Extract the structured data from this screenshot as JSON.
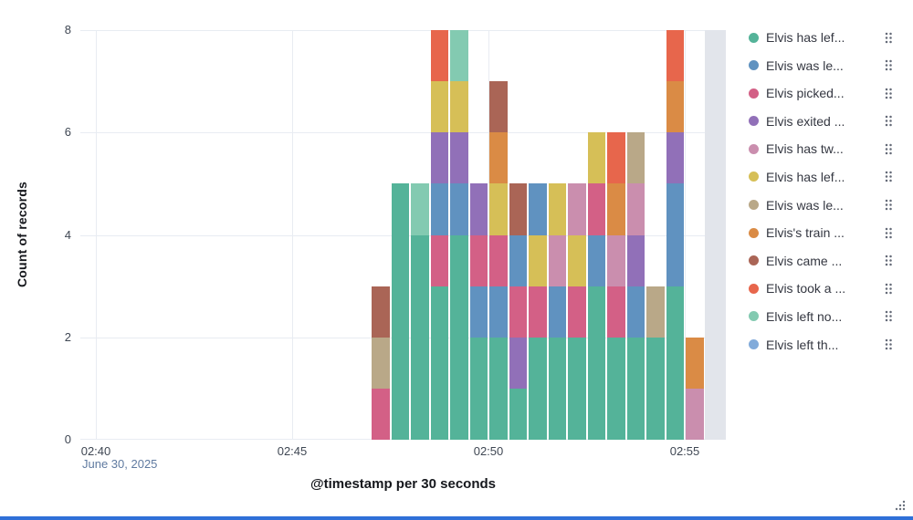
{
  "chart_data": {
    "type": "bar",
    "stacked": true,
    "title": "",
    "xlabel": "@timestamp per 30 seconds",
    "ylabel": "Count of records",
    "x_context_label": "June 30, 2025",
    "ylim": [
      0,
      8
    ],
    "yticks": [
      0,
      2,
      4,
      6,
      8
    ],
    "grid": true,
    "legend_position": "right",
    "bucket_seconds": 30,
    "xticks": [
      {
        "label": "02:40",
        "minute": 0
      },
      {
        "label": "02:45",
        "minute": 5
      },
      {
        "label": "02:50",
        "minute": 10
      },
      {
        "label": "02:55",
        "minute": 15
      }
    ],
    "series": [
      {
        "name": "Elvis has lef...",
        "color": "#54B399"
      },
      {
        "name": "Elvis was le...",
        "color": "#6092C0"
      },
      {
        "name": "Elvis picked...",
        "color": "#D36086"
      },
      {
        "name": "Elvis exited ...",
        "color": "#9170B8"
      },
      {
        "name": "Elvis has tw...",
        "color": "#CA8EAE"
      },
      {
        "name": "Elvis has lef...",
        "color": "#D6BF57"
      },
      {
        "name": "Elvis was le...",
        "color": "#B9A888"
      },
      {
        "name": "Elvis's train ...",
        "color": "#DA8B45"
      },
      {
        "name": "Elvis came ...",
        "color": "#AA6556"
      },
      {
        "name": "Elvis took a ...",
        "color": "#E7664C"
      },
      {
        "name": "Elvis left no...",
        "color": "#83CAB1"
      },
      {
        "name": "Elvis left th...",
        "color": "#82ABDA"
      }
    ],
    "buckets": [
      {
        "time": "02:47:00",
        "i": 14,
        "total": 3,
        "stack": [
          [
            2,
            1
          ],
          [
            6,
            1
          ],
          [
            8,
            1
          ]
        ]
      },
      {
        "time": "02:47:30",
        "i": 15,
        "total": 5,
        "stack": [
          [
            0,
            5
          ]
        ]
      },
      {
        "time": "02:48:00",
        "i": 16,
        "total": 5,
        "stack": [
          [
            0,
            4
          ],
          [
            10,
            1
          ]
        ]
      },
      {
        "time": "02:48:30",
        "i": 17,
        "total": 8,
        "stack": [
          [
            0,
            3
          ],
          [
            2,
            1
          ],
          [
            1,
            1
          ],
          [
            3,
            1
          ],
          [
            5,
            1
          ],
          [
            9,
            1
          ]
        ]
      },
      {
        "time": "02:49:00",
        "i": 18,
        "total": 8,
        "stack": [
          [
            0,
            4
          ],
          [
            1,
            1
          ],
          [
            3,
            1
          ],
          [
            5,
            1
          ],
          [
            10,
            1
          ]
        ]
      },
      {
        "time": "02:49:30",
        "i": 19,
        "total": 5,
        "stack": [
          [
            0,
            2
          ],
          [
            1,
            1
          ],
          [
            2,
            1
          ],
          [
            3,
            1
          ]
        ]
      },
      {
        "time": "02:50:00",
        "i": 20,
        "total": 7,
        "stack": [
          [
            0,
            2
          ],
          [
            1,
            1
          ],
          [
            2,
            1
          ],
          [
            5,
            1
          ],
          [
            7,
            1
          ],
          [
            8,
            1
          ]
        ]
      },
      {
        "time": "02:50:30",
        "i": 21,
        "total": 5,
        "stack": [
          [
            0,
            1
          ],
          [
            3,
            1
          ],
          [
            2,
            1
          ],
          [
            1,
            1
          ],
          [
            8,
            1
          ]
        ]
      },
      {
        "time": "02:51:00",
        "i": 22,
        "total": 5,
        "stack": [
          [
            0,
            2
          ],
          [
            2,
            1
          ],
          [
            5,
            1
          ],
          [
            1,
            1
          ]
        ]
      },
      {
        "time": "02:51:30",
        "i": 23,
        "total": 5,
        "stack": [
          [
            0,
            2
          ],
          [
            1,
            1
          ],
          [
            4,
            1
          ],
          [
            5,
            1
          ]
        ]
      },
      {
        "time": "02:52:00",
        "i": 24,
        "total": 5,
        "stack": [
          [
            0,
            2
          ],
          [
            2,
            1
          ],
          [
            5,
            1
          ],
          [
            4,
            1
          ]
        ]
      },
      {
        "time": "02:52:30",
        "i": 25,
        "total": 6,
        "stack": [
          [
            0,
            3
          ],
          [
            1,
            1
          ],
          [
            2,
            1
          ],
          [
            5,
            1
          ]
        ]
      },
      {
        "time": "02:53:00",
        "i": 26,
        "total": 6,
        "stack": [
          [
            0,
            2
          ],
          [
            2,
            1
          ],
          [
            4,
            1
          ],
          [
            7,
            1
          ],
          [
            9,
            1
          ]
        ]
      },
      {
        "time": "02:53:30",
        "i": 27,
        "total": 6,
        "stack": [
          [
            0,
            2
          ],
          [
            1,
            1
          ],
          [
            3,
            1
          ],
          [
            4,
            1
          ],
          [
            6,
            1
          ]
        ]
      },
      {
        "time": "02:54:00",
        "i": 28,
        "total": 3,
        "stack": [
          [
            0,
            2
          ],
          [
            6,
            1
          ]
        ]
      },
      {
        "time": "02:54:30",
        "i": 29,
        "total": 8,
        "stack": [
          [
            0,
            3
          ],
          [
            1,
            2
          ],
          [
            3,
            1
          ],
          [
            7,
            1
          ],
          [
            9,
            1
          ]
        ]
      },
      {
        "time": "02:55:00",
        "i": 30,
        "total": 2,
        "stack": [
          [
            4,
            1
          ],
          [
            7,
            1
          ]
        ]
      }
    ],
    "partial_bucket": {
      "time": "02:55:30",
      "i": 31
    }
  },
  "icons": {
    "legend_actions": "drag-handle-dots",
    "resize": "resize-grip-dots"
  },
  "colors": {
    "gridline": "#e8ecf2",
    "partial_band": "#e2e5eb",
    "tick_text": "#3f4753",
    "date_text": "#5f7aa0",
    "legend_text": "#343741",
    "bottom_bar": "#2f70d8",
    "icon_gray": "#646a77"
  }
}
